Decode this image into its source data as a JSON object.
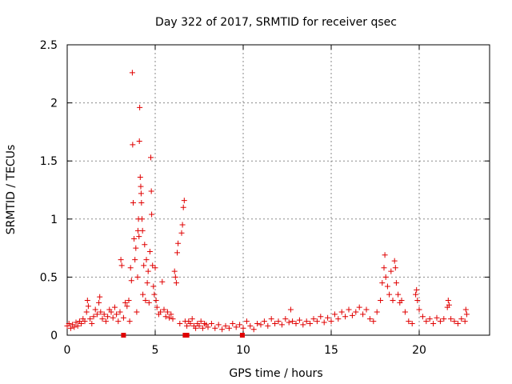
{
  "chart_data": {
    "type": "scatter",
    "title": "Day 322 of 2017, SRMTID for receiver qsec",
    "xlabel": "GPS time / hours",
    "ylabel": "SRMTID / TECUs",
    "xlim": [
      0,
      24
    ],
    "ylim": [
      0,
      2.5
    ],
    "xticks": [
      0,
      5,
      10,
      15,
      20
    ],
    "yticks": [
      0,
      0.5,
      1,
      1.5,
      2,
      2.5
    ],
    "xtick_labels": [
      "0",
      "5",
      "10",
      "15",
      "20"
    ],
    "ytick_labels": [
      "0",
      "0.5",
      "1",
      "1.5",
      "2",
      "2.5"
    ],
    "grid": true,
    "series": [
      {
        "name": "SRMTID",
        "marker": "+",
        "color": "#e00000",
        "points": [
          [
            0.0,
            0.08
          ],
          [
            0.1,
            0.1
          ],
          [
            0.2,
            0.06
          ],
          [
            0.3,
            0.09
          ],
          [
            0.4,
            0.07
          ],
          [
            0.5,
            0.11
          ],
          [
            0.6,
            0.08
          ],
          [
            0.7,
            0.12
          ],
          [
            0.8,
            0.1
          ],
          [
            0.9,
            0.14
          ],
          [
            1.0,
            0.12
          ],
          [
            1.1,
            0.2
          ],
          [
            1.15,
            0.3
          ],
          [
            1.2,
            0.25
          ],
          [
            1.3,
            0.14
          ],
          [
            1.4,
            0.1
          ],
          [
            1.5,
            0.16
          ],
          [
            1.6,
            0.22
          ],
          [
            1.7,
            0.18
          ],
          [
            1.8,
            0.28
          ],
          [
            1.85,
            0.33
          ],
          [
            1.9,
            0.2
          ],
          [
            2.0,
            0.14
          ],
          [
            2.1,
            0.18
          ],
          [
            2.2,
            0.12
          ],
          [
            2.3,
            0.16
          ],
          [
            2.4,
            0.22
          ],
          [
            2.5,
            0.2
          ],
          [
            2.6,
            0.15
          ],
          [
            2.7,
            0.24
          ],
          [
            2.8,
            0.18
          ],
          [
            2.9,
            0.12
          ],
          [
            3.0,
            0.2
          ],
          [
            3.05,
            0.65
          ],
          [
            3.1,
            0.6
          ],
          [
            3.2,
            0.15
          ],
          [
            3.3,
            0.28
          ],
          [
            3.4,
            0.25
          ],
          [
            3.5,
            0.3
          ],
          [
            3.55,
            0.12
          ],
          [
            3.6,
            0.58
          ],
          [
            3.65,
            0.47
          ],
          [
            3.7,
            2.26
          ],
          [
            3.72,
            1.64
          ],
          [
            3.75,
            1.14
          ],
          [
            3.8,
            0.83
          ],
          [
            3.85,
            0.65
          ],
          [
            3.9,
            0.75
          ],
          [
            3.95,
            0.2
          ],
          [
            4.0,
            0.5
          ],
          [
            4.02,
            0.9
          ],
          [
            4.05,
            1.0
          ],
          [
            4.08,
            0.85
          ],
          [
            4.1,
            1.67
          ],
          [
            4.12,
            1.96
          ],
          [
            4.15,
            1.36
          ],
          [
            4.18,
            1.28
          ],
          [
            4.2,
            1.22
          ],
          [
            4.22,
            1.14
          ],
          [
            4.25,
            1.0
          ],
          [
            4.28,
            0.9
          ],
          [
            4.3,
            0.35
          ],
          [
            4.35,
            0.6
          ],
          [
            4.4,
            0.78
          ],
          [
            4.45,
            0.3
          ],
          [
            4.5,
            0.65
          ],
          [
            4.55,
            0.45
          ],
          [
            4.6,
            0.55
          ],
          [
            4.65,
            0.28
          ],
          [
            4.7,
            0.72
          ],
          [
            4.75,
            1.53
          ],
          [
            4.78,
            1.24
          ],
          [
            4.8,
            1.04
          ],
          [
            4.85,
            0.6
          ],
          [
            4.9,
            0.42
          ],
          [
            4.95,
            0.35
          ],
          [
            5.0,
            0.58
          ],
          [
            5.05,
            0.3
          ],
          [
            5.1,
            0.24
          ],
          [
            5.2,
            0.18
          ],
          [
            5.3,
            0.2
          ],
          [
            5.4,
            0.46
          ],
          [
            5.5,
            0.22
          ],
          [
            5.6,
            0.16
          ],
          [
            5.7,
            0.2
          ],
          [
            5.8,
            0.15
          ],
          [
            5.9,
            0.18
          ],
          [
            6.0,
            0.14
          ],
          [
            6.1,
            0.55
          ],
          [
            6.15,
            0.5
          ],
          [
            6.2,
            0.45
          ],
          [
            6.25,
            0.71
          ],
          [
            6.3,
            0.79
          ],
          [
            6.4,
            0.1
          ],
          [
            6.5,
            0.88
          ],
          [
            6.55,
            0.95
          ],
          [
            6.6,
            1.1
          ],
          [
            6.65,
            1.16
          ],
          [
            6.7,
            0.12
          ],
          [
            6.8,
            0.08
          ],
          [
            6.9,
            0.12
          ],
          [
            7.0,
            0.1
          ],
          [
            7.1,
            0.14
          ],
          [
            7.2,
            0.08
          ],
          [
            7.3,
            0.06
          ],
          [
            7.4,
            0.1
          ],
          [
            7.5,
            0.08
          ],
          [
            7.6,
            0.12
          ],
          [
            7.7,
            0.06
          ],
          [
            7.8,
            0.1
          ],
          [
            7.9,
            0.09
          ],
          [
            8.0,
            0.07
          ],
          [
            8.2,
            0.1
          ],
          [
            8.4,
            0.06
          ],
          [
            8.6,
            0.09
          ],
          [
            8.8,
            0.05
          ],
          [
            9.0,
            0.08
          ],
          [
            9.2,
            0.06
          ],
          [
            9.4,
            0.1
          ],
          [
            9.6,
            0.07
          ],
          [
            9.8,
            0.09
          ],
          [
            10.0,
            0.06
          ],
          [
            10.2,
            0.12
          ],
          [
            10.4,
            0.08
          ],
          [
            10.6,
            0.05
          ],
          [
            10.8,
            0.1
          ],
          [
            11.0,
            0.09
          ],
          [
            11.2,
            0.12
          ],
          [
            11.4,
            0.08
          ],
          [
            11.6,
            0.14
          ],
          [
            11.8,
            0.1
          ],
          [
            12.0,
            0.12
          ],
          [
            12.2,
            0.09
          ],
          [
            12.4,
            0.14
          ],
          [
            12.6,
            0.11
          ],
          [
            12.7,
            0.22
          ],
          [
            12.8,
            0.12
          ],
          [
            13.0,
            0.1
          ],
          [
            13.2,
            0.13
          ],
          [
            13.4,
            0.09
          ],
          [
            13.6,
            0.12
          ],
          [
            13.8,
            0.1
          ],
          [
            14.0,
            0.14
          ],
          [
            14.2,
            0.12
          ],
          [
            14.4,
            0.16
          ],
          [
            14.6,
            0.11
          ],
          [
            14.8,
            0.15
          ],
          [
            15.0,
            0.12
          ],
          [
            15.2,
            0.18
          ],
          [
            15.4,
            0.14
          ],
          [
            15.6,
            0.2
          ],
          [
            15.8,
            0.16
          ],
          [
            16.0,
            0.22
          ],
          [
            16.2,
            0.17
          ],
          [
            16.4,
            0.2
          ],
          [
            16.6,
            0.24
          ],
          [
            16.8,
            0.18
          ],
          [
            17.0,
            0.22
          ],
          [
            17.2,
            0.14
          ],
          [
            17.4,
            0.12
          ],
          [
            17.6,
            0.2
          ],
          [
            17.8,
            0.3
          ],
          [
            17.9,
            0.45
          ],
          [
            18.0,
            0.58
          ],
          [
            18.05,
            0.69
          ],
          [
            18.1,
            0.5
          ],
          [
            18.2,
            0.42
          ],
          [
            18.3,
            0.35
          ],
          [
            18.4,
            0.55
          ],
          [
            18.5,
            0.3
          ],
          [
            18.6,
            0.64
          ],
          [
            18.65,
            0.58
          ],
          [
            18.7,
            0.45
          ],
          [
            18.8,
            0.35
          ],
          [
            18.9,
            0.28
          ],
          [
            19.0,
            0.3
          ],
          [
            19.2,
            0.2
          ],
          [
            19.4,
            0.12
          ],
          [
            19.6,
            0.1
          ],
          [
            19.8,
            0.35
          ],
          [
            19.85,
            0.39
          ],
          [
            19.9,
            0.3
          ],
          [
            20.0,
            0.22
          ],
          [
            20.2,
            0.16
          ],
          [
            20.4,
            0.12
          ],
          [
            20.6,
            0.14
          ],
          [
            20.8,
            0.1
          ],
          [
            21.0,
            0.15
          ],
          [
            21.2,
            0.12
          ],
          [
            21.4,
            0.14
          ],
          [
            21.6,
            0.24
          ],
          [
            21.65,
            0.3
          ],
          [
            21.7,
            0.26
          ],
          [
            21.8,
            0.14
          ],
          [
            22.0,
            0.12
          ],
          [
            22.2,
            0.1
          ],
          [
            22.4,
            0.14
          ],
          [
            22.6,
            0.12
          ],
          [
            22.65,
            0.22
          ],
          [
            22.7,
            0.18
          ]
        ]
      }
    ],
    "baseline_markers": {
      "color": "#e00000",
      "points": [
        [
          3.2,
          0
        ],
        [
          6.7,
          0
        ],
        [
          6.8,
          0
        ],
        [
          9.95,
          0
        ]
      ]
    }
  }
}
